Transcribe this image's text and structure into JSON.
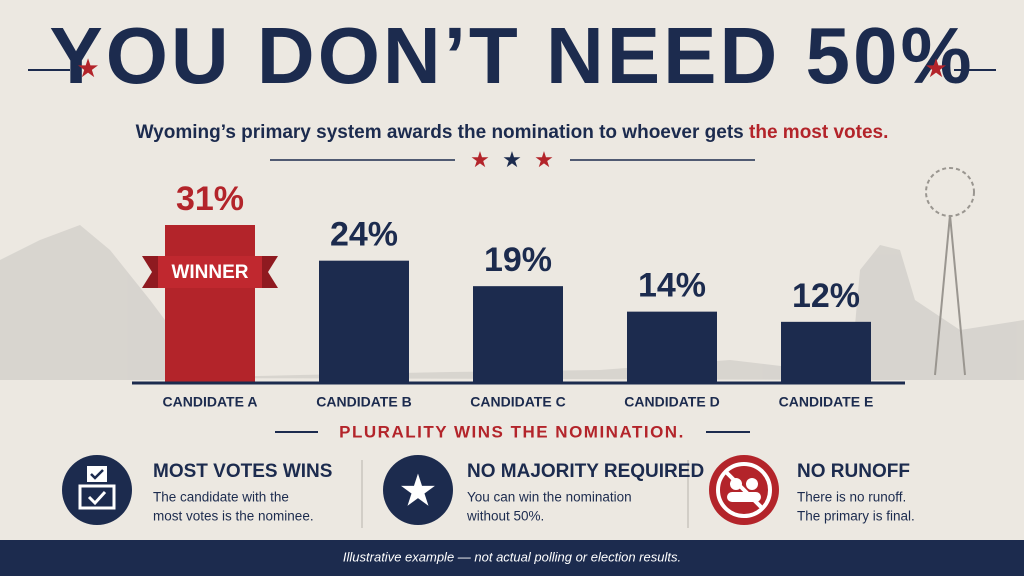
{
  "chart_data": {
    "type": "bar",
    "title": "YOU DON’T NEED 50%",
    "subtitle": {
      "text": "Wyoming’s primary system awards the nomination to whoever gets",
      "highlight": "the most votes."
    },
    "categories": [
      "CANDIDATE A",
      "CANDIDATE B",
      "CANDIDATE C",
      "CANDIDATE D",
      "CANDIDATE E"
    ],
    "values": [
      31,
      24,
      19,
      14,
      12
    ],
    "value_labels": [
      "31%",
      "24%",
      "19%",
      "14%",
      "12%"
    ],
    "colors": [
      "#b3242a",
      "#1c2b4e",
      "#1c2b4e",
      "#1c2b4e",
      "#1c2b4e"
    ],
    "winner_label": "WINNER",
    "banner": "PLURALITY WINS THE NOMINATION.",
    "features": [
      {
        "title": "MOST VOTES WINS",
        "lines": [
          "The candidate with the",
          "most votes is the nominee."
        ]
      },
      {
        "title": "NO MAJORITY REQUIRED",
        "lines": [
          "You can win the nomination",
          "without 50%."
        ]
      },
      {
        "title": "NO RUNOFF",
        "lines": [
          "There is no runoff.",
          "The primary is final."
        ]
      }
    ],
    "footer": "Illustrative example — not actual polling or election results."
  }
}
